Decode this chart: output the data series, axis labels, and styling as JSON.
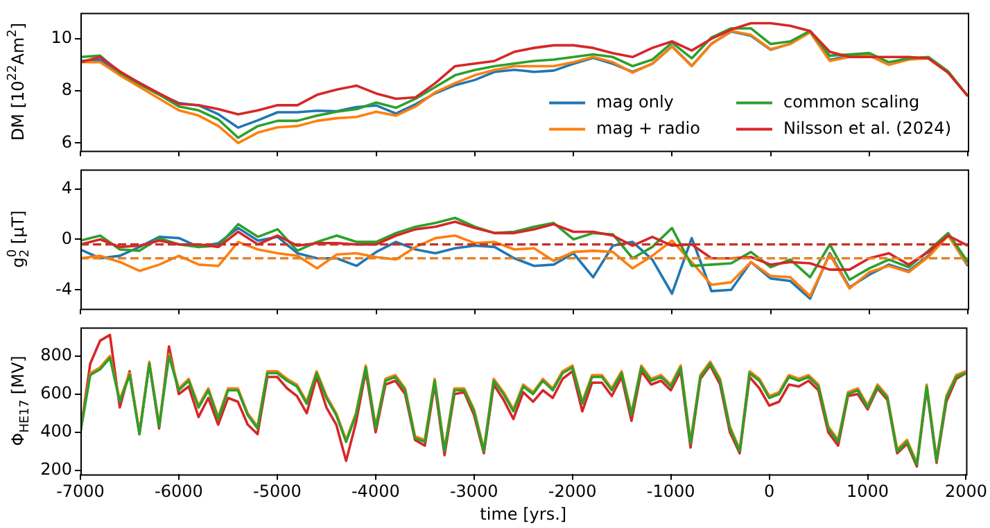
{
  "chart_data": [
    {
      "type": "line",
      "ylabel": "DM [10$^{22}$Am$^{2}$]",
      "xlim": [
        -7000,
        2000
      ],
      "xticks": [
        -7000,
        -6000,
        -5000,
        -4000,
        -3000,
        -2000,
        -1000,
        0,
        1000,
        2000
      ],
      "ylim": [
        5.7,
        11.0
      ],
      "yticks": [
        6,
        8,
        10
      ],
      "tick_labels": "y",
      "grid": false,
      "legend": "bottom right",
      "marker": "none",
      "line_style": "solid",
      "x": [
        -7000,
        -6800,
        -6600,
        -6400,
        -6200,
        -6000,
        -5800,
        -5600,
        -5400,
        -5200,
        -5000,
        -4800,
        -4600,
        -4400,
        -4200,
        -4000,
        -3800,
        -3600,
        -3400,
        -3200,
        -3000,
        -2800,
        -2600,
        -2400,
        -2200,
        -2000,
        -1800,
        -1600,
        -1400,
        -1200,
        -1000,
        -800,
        -600,
        -400,
        -200,
        0,
        200,
        400,
        600,
        800,
        1000,
        1200,
        1400,
        1600,
        1800,
        2000
      ],
      "series": [
        {
          "name": "mag only",
          "color": "#1f77b4",
          "values": [
            9.15,
            9.2,
            8.65,
            8.31,
            7.88,
            7.53,
            7.44,
            7.1,
            6.59,
            6.87,
            7.18,
            7.18,
            7.24,
            7.22,
            7.38,
            7.44,
            7.13,
            7.49,
            7.91,
            8.22,
            8.42,
            8.73,
            8.81,
            8.73,
            8.78,
            9.04,
            9.27,
            9.04,
            8.73,
            9.04,
            9.71,
            8.96,
            9.81,
            10.28,
            10.12,
            9.58,
            9.81,
            10.28,
            9.19,
            9.35,
            9.4,
            null,
            null,
            null,
            null,
            null
          ]
        },
        {
          "name": "mag + radio",
          "color": "#ff7f0e",
          "values": [
            9.1,
            9.1,
            8.6,
            8.15,
            7.7,
            7.25,
            7.05,
            6.65,
            6.0,
            6.4,
            6.6,
            6.65,
            6.85,
            6.95,
            7.0,
            7.2,
            7.05,
            7.4,
            7.95,
            8.3,
            8.6,
            8.8,
            8.95,
            8.95,
            8.95,
            9.1,
            9.3,
            9.1,
            8.7,
            9.05,
            9.7,
            8.95,
            9.8,
            10.3,
            10.15,
            9.6,
            9.8,
            10.25,
            9.15,
            9.3,
            9.35,
            9.0,
            9.2,
            9.25,
            8.7,
            7.8
          ]
        },
        {
          "name": "common scaling",
          "color": "#2ca02c",
          "values": [
            9.3,
            9.35,
            8.7,
            8.25,
            7.85,
            7.4,
            7.25,
            6.9,
            6.2,
            6.65,
            6.85,
            6.85,
            7.05,
            7.2,
            7.3,
            7.55,
            7.35,
            7.7,
            8.15,
            8.6,
            8.8,
            8.95,
            9.05,
            9.15,
            9.2,
            9.3,
            9.4,
            9.3,
            8.95,
            9.2,
            9.85,
            9.25,
            10.05,
            10.4,
            10.4,
            9.8,
            9.9,
            10.3,
            9.35,
            9.4,
            9.45,
            9.1,
            9.25,
            9.3,
            8.75,
            7.8
          ]
        },
        {
          "name": "Nilsson et al. (2024)",
          "color": "#d62728",
          "values": [
            9.1,
            9.3,
            8.75,
            8.3,
            7.9,
            7.5,
            7.45,
            7.3,
            7.1,
            7.25,
            7.45,
            7.45,
            7.85,
            8.05,
            8.2,
            7.9,
            7.7,
            7.75,
            8.3,
            8.95,
            9.05,
            9.15,
            9.5,
            9.65,
            9.75,
            9.75,
            9.65,
            9.45,
            9.3,
            9.65,
            9.9,
            9.55,
            10.0,
            10.35,
            10.6,
            10.6,
            10.5,
            10.3,
            9.5,
            9.3,
            9.3,
            9.3,
            9.3,
            9.25,
            8.7,
            7.8
          ]
        }
      ]
    },
    {
      "type": "line",
      "ylabel": "g$_{2}$$^{0}$ [μT]",
      "xlim": [
        -7000,
        2000
      ],
      "xticks": [
        -7000,
        -6000,
        -5000,
        -4000,
        -3000,
        -2000,
        -1000,
        0,
        1000,
        2000
      ],
      "ylim": [
        -5.5,
        5.55
      ],
      "yticks": [
        -4,
        0,
        4
      ],
      "tick_labels": "y",
      "grid": false,
      "marker": "none",
      "line_style": "solid",
      "x": [
        -7000,
        -6800,
        -6600,
        -6400,
        -6200,
        -6000,
        -5800,
        -5600,
        -5400,
        -5200,
        -5000,
        -4800,
        -4600,
        -4400,
        -4200,
        -4000,
        -3800,
        -3600,
        -3400,
        -3200,
        -3000,
        -2800,
        -2600,
        -2400,
        -2200,
        -2000,
        -1800,
        -1600,
        -1400,
        -1200,
        -1000,
        -800,
        -600,
        -400,
        -200,
        0,
        200,
        400,
        600,
        800,
        1000,
        1200,
        1400,
        1600,
        1800,
        2000
      ],
      "series": [
        {
          "color": "#1f77b4",
          "values": [
            -0.8,
            -1.5,
            -1.3,
            -0.6,
            0.2,
            0.1,
            -0.6,
            -0.3,
            0.9,
            -0.1,
            0.2,
            -1.1,
            -1.5,
            -1.5,
            -2.1,
            -1.0,
            -0.2,
            -0.8,
            -1.1,
            -0.7,
            -0.5,
            -0.6,
            -1.5,
            -2.1,
            -2.0,
            -1.1,
            -3.0,
            -0.5,
            -0.2,
            -1.6,
            -4.3,
            0.1,
            -4.1,
            -4.0,
            -1.8,
            -3.1,
            -3.3,
            -4.7,
            -1.1,
            -3.8,
            -2.8,
            -2.0,
            -2.5,
            -1.3,
            0.4,
            -2.1
          ]
        },
        {
          "color": "#ff7f0e",
          "values": [
            -1.5,
            -1.3,
            -1.8,
            -2.5,
            -2.0,
            -1.3,
            -2.0,
            -2.1,
            -0.2,
            -0.8,
            -1.1,
            -1.3,
            -2.3,
            -1.2,
            -1.1,
            -1.4,
            -1.6,
            -0.6,
            0.1,
            0.3,
            -0.3,
            -0.2,
            -0.8,
            -0.7,
            -1.7,
            -1.0,
            -0.9,
            -1.0,
            -2.3,
            -1.3,
            -0.1,
            -1.8,
            -3.6,
            -3.4,
            -1.8,
            -2.9,
            -3.0,
            -4.5,
            -1.2,
            -3.9,
            -2.6,
            -2.1,
            -2.6,
            -1.4,
            0.3,
            -2.0
          ]
        },
        {
          "color": "#2ca02c",
          "values": [
            -0.1,
            0.3,
            -0.8,
            -0.9,
            0.1,
            -0.4,
            -0.6,
            -0.5,
            1.2,
            0.2,
            0.8,
            -0.9,
            -0.2,
            0.3,
            -0.2,
            -0.2,
            0.5,
            1.0,
            1.3,
            1.7,
            1.0,
            0.5,
            0.6,
            1.0,
            1.3,
            0.0,
            0.5,
            0.4,
            -1.5,
            -0.6,
            0.9,
            -2.1,
            -2.0,
            -1.9,
            -1.0,
            -2.2,
            -1.6,
            -3.0,
            -0.4,
            -3.2,
            -2.3,
            -1.6,
            -2.2,
            -0.9,
            0.5,
            -1.8
          ]
        },
        {
          "color": "#d62728",
          "values": [
            -0.4,
            0.0,
            -0.6,
            -0.5,
            -0.1,
            -0.4,
            -0.4,
            -0.6,
            0.6,
            -0.4,
            0.3,
            -0.5,
            -0.3,
            -0.3,
            -0.4,
            -0.4,
            0.3,
            0.8,
            1.0,
            1.4,
            0.9,
            0.5,
            0.5,
            0.8,
            1.2,
            0.6,
            0.6,
            0.3,
            -0.5,
            0.2,
            -0.5,
            -0.4,
            -1.5,
            -1.5,
            -1.4,
            -2.0,
            -1.8,
            -1.9,
            -2.4,
            -2.4,
            -1.5,
            -1.1,
            -2.0,
            -1.0,
            0.3,
            -0.5
          ]
        }
      ],
      "ref_lines": [
        {
          "axis": "y",
          "value": -1.5,
          "color": "#1f77b4",
          "line_style": "dashed"
        },
        {
          "axis": "y",
          "value": -1.5,
          "color": "#ff7f0e",
          "line_style": "dashed"
        },
        {
          "axis": "y",
          "value": -0.4,
          "color": "#2ca02c",
          "line_style": "dashed"
        },
        {
          "axis": "y",
          "value": -0.4,
          "color": "#d62728",
          "line_style": "dashed"
        }
      ]
    },
    {
      "type": "line",
      "ylabel": "Φ$_{HE17}$ [MV]",
      "xlabel": "time [yrs.]",
      "xlim": [
        -7000,
        2000
      ],
      "xticks": [
        -7000,
        -6000,
        -5000,
        -4000,
        -3000,
        -2000,
        -1000,
        0,
        1000,
        2000
      ],
      "ylim": [
        180,
        950
      ],
      "yticks": [
        200,
        400,
        600,
        800
      ],
      "grid": false,
      "marker": "none",
      "line_style": "solid",
      "x": [
        -7000,
        -6900,
        -6800,
        -6700,
        -6600,
        -6500,
        -6400,
        -6300,
        -6200,
        -6100,
        -6000,
        -5900,
        -5800,
        -5700,
        -5600,
        -5500,
        -5400,
        -5300,
        -5200,
        -5100,
        -5000,
        -4900,
        -4800,
        -4700,
        -4600,
        -4500,
        -4400,
        -4300,
        -4200,
        -4100,
        -4000,
        -3900,
        -3800,
        -3700,
        -3600,
        -3500,
        -3400,
        -3300,
        -3200,
        -3100,
        -3000,
        -2900,
        -2800,
        -2700,
        -2600,
        -2500,
        -2400,
        -2300,
        -2200,
        -2100,
        -2000,
        -1900,
        -1800,
        -1700,
        -1600,
        -1500,
        -1400,
        -1300,
        -1200,
        -1100,
        -1000,
        -900,
        -800,
        -700,
        -600,
        -500,
        -400,
        -300,
        -200,
        -100,
        0,
        100,
        200,
        300,
        400,
        500,
        600,
        700,
        800,
        900,
        1000,
        1100,
        1200,
        1300,
        1400,
        1500,
        1600,
        1700,
        1800,
        1900,
        2000
      ],
      "series": [
        {
          "color": "#d62728",
          "values": [
            400,
            760,
            880,
            910,
            530,
            720,
            390,
            760,
            420,
            850,
            600,
            640,
            480,
            580,
            440,
            580,
            560,
            440,
            390,
            690,
            690,
            630,
            590,
            500,
            690,
            530,
            440,
            250,
            450,
            720,
            400,
            650,
            670,
            600,
            360,
            330,
            650,
            280,
            600,
            610,
            490,
            290,
            650,
            570,
            470,
            610,
            560,
            620,
            580,
            680,
            720,
            510,
            660,
            660,
            590,
            690,
            460,
            720,
            650,
            670,
            620,
            720,
            320,
            680,
            750,
            650,
            400,
            290,
            690,
            630,
            540,
            560,
            650,
            640,
            670,
            620,
            400,
            330,
            590,
            600,
            520,
            630,
            570,
            290,
            340,
            220,
            630,
            240,
            560,
            680,
            710
          ]
        },
        {
          "color": "#ff7f0e",
          "values": [
            410,
            710,
            740,
            800,
            570,
            710,
            400,
            770,
            440,
            810,
            630,
            680,
            540,
            630,
            480,
            630,
            630,
            500,
            430,
            720,
            720,
            680,
            650,
            560,
            720,
            590,
            500,
            360,
            500,
            750,
            430,
            680,
            700,
            630,
            380,
            360,
            680,
            310,
            630,
            630,
            520,
            310,
            680,
            610,
            520,
            650,
            610,
            680,
            630,
            720,
            750,
            560,
            700,
            700,
            630,
            720,
            500,
            750,
            680,
            700,
            650,
            750,
            350,
            700,
            770,
            680,
            430,
            310,
            720,
            680,
            590,
            610,
            700,
            680,
            700,
            650,
            430,
            360,
            610,
            630,
            540,
            650,
            590,
            310,
            360,
            240,
            650,
            260,
            590,
            700,
            720
          ]
        },
        {
          "color": "#2ca02c",
          "values": [
            400,
            700,
            730,
            790,
            560,
            700,
            390,
            760,
            430,
            800,
            620,
            670,
            530,
            620,
            470,
            620,
            620,
            490,
            420,
            710,
            710,
            670,
            640,
            550,
            710,
            580,
            490,
            350,
            490,
            740,
            420,
            670,
            690,
            620,
            370,
            350,
            670,
            300,
            620,
            620,
            510,
            300,
            670,
            600,
            510,
            640,
            600,
            670,
            620,
            710,
            740,
            550,
            690,
            690,
            620,
            710,
            490,
            740,
            670,
            690,
            640,
            740,
            340,
            690,
            760,
            670,
            420,
            300,
            710,
            670,
            580,
            600,
            690,
            670,
            690,
            640,
            420,
            350,
            600,
            620,
            530,
            640,
            580,
            300,
            350,
            230,
            640,
            250,
            580,
            690,
            710
          ]
        }
      ]
    }
  ]
}
